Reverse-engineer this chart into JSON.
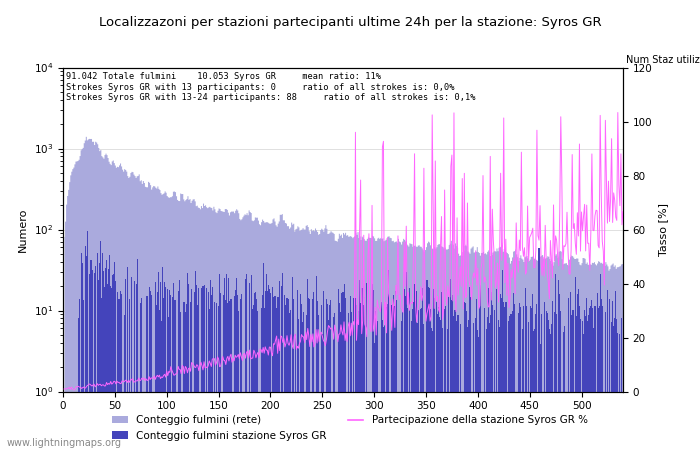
{
  "title": "Localizzazoni per stazioni partecipanti ultime 24h per la stazione: Syros GR",
  "subtitle_lines": [
    "91.042 Totale fulmini    10.053 Syros GR     mean ratio: 11%",
    "Strokes Syros GR with 13 participants: 0     ratio of all strokes is: 0,0%",
    "Strokes Syros GR with 13-24 participants: 88     ratio of all strokes is: 0,1%"
  ],
  "ylabel_left": "Numero",
  "ylabel_right": "Tasso [%]",
  "xlim": [
    0,
    540
  ],
  "ylim_left": [
    1,
    10000
  ],
  "ylim_right": [
    0,
    120
  ],
  "right_yticks": [
    0,
    20,
    40,
    60,
    80,
    100,
    120
  ],
  "xticks": [
    0,
    50,
    100,
    150,
    200,
    250,
    300,
    350,
    400,
    450,
    500
  ],
  "color_total": "#aaaadd",
  "color_station": "#4444bb",
  "color_line": "#ff66ff",
  "watermark": "www.lightningmaps.org",
  "legend_entries": [
    "Conteggio fulmini (rete)",
    "Conteggio fulmini stazione Syros GR",
    "Partecipazione della stazione Syros GR %"
  ],
  "num_staz_label": "Num Staz utilizzate",
  "n_stations": 540,
  "seed": 42
}
